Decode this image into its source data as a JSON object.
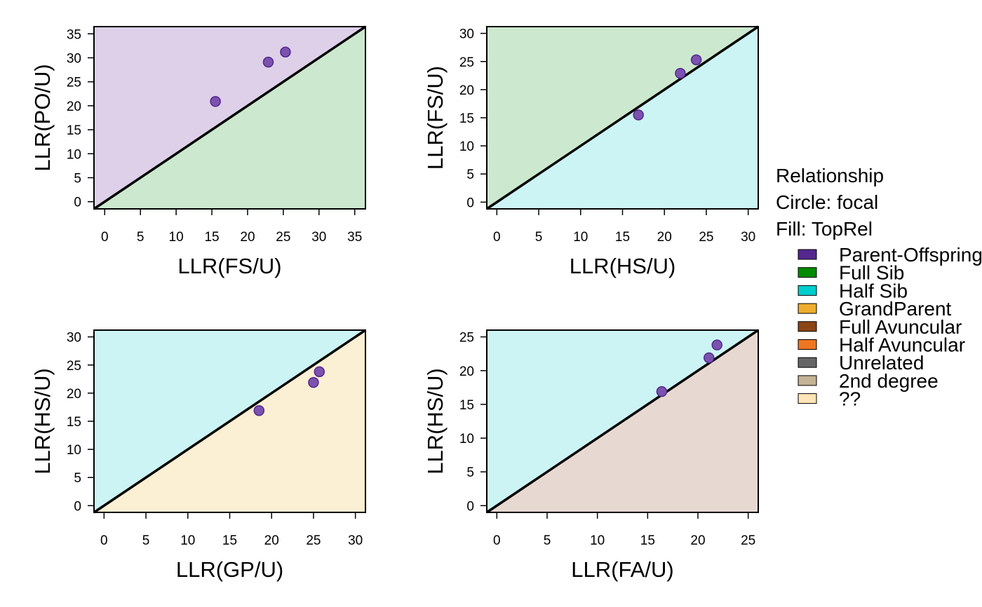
{
  "chart_data": [
    {
      "type": "scatter",
      "xlabel": "LLR(FS/U)",
      "ylabel": "LLR(PO/U)",
      "xlim": [
        -1.5,
        36.5
      ],
      "ylim": [
        -1.5,
        36.5
      ],
      "xticks": [
        0,
        5,
        10,
        15,
        20,
        25,
        30,
        35
      ],
      "yticks": [
        0,
        5,
        10,
        15,
        20,
        25,
        30,
        35
      ],
      "fill_above": "Parent-Offspring",
      "fill_below": "Full Sib",
      "points": [
        {
          "x": 15.5,
          "y": 20.9
        },
        {
          "x": 22.9,
          "y": 29.1
        },
        {
          "x": 25.3,
          "y": 31.2
        }
      ]
    },
    {
      "type": "scatter",
      "xlabel": "LLR(HS/U)",
      "ylabel": "LLR(FS/U)",
      "xlim": [
        -1.2,
        31.2
      ],
      "ylim": [
        -1.2,
        31.2
      ],
      "xticks": [
        0,
        5,
        10,
        15,
        20,
        25,
        30
      ],
      "yticks": [
        0,
        5,
        10,
        15,
        20,
        25,
        30
      ],
      "fill_above": "Full Sib",
      "fill_below": "Half Sib",
      "points": [
        {
          "x": 16.9,
          "y": 15.5
        },
        {
          "x": 21.9,
          "y": 22.9
        },
        {
          "x": 23.8,
          "y": 25.3
        }
      ]
    },
    {
      "type": "scatter",
      "xlabel": "LLR(GP/U)",
      "ylabel": "LLR(HS/U)",
      "xlim": [
        -1.2,
        31.2
      ],
      "ylim": [
        -1.2,
        31.2
      ],
      "xticks": [
        0,
        5,
        10,
        15,
        20,
        25,
        30
      ],
      "yticks": [
        0,
        5,
        10,
        15,
        20,
        25,
        30
      ],
      "fill_above": "Half Sib",
      "fill_below": "GrandParent",
      "points": [
        {
          "x": 18.5,
          "y": 16.9
        },
        {
          "x": 25.0,
          "y": 21.9
        },
        {
          "x": 25.7,
          "y": 23.8
        }
      ]
    },
    {
      "type": "scatter",
      "xlabel": "LLR(FA/U)",
      "ylabel": "LLR(HS/U)",
      "xlim": [
        -1.0,
        26.0
      ],
      "ylim": [
        -1.0,
        26.0
      ],
      "xticks": [
        0,
        5,
        10,
        15,
        20,
        25
      ],
      "yticks": [
        0,
        5,
        10,
        15,
        20,
        25
      ],
      "fill_above": "Half Sib",
      "fill_below": "2nd degree",
      "points": [
        {
          "x": 16.4,
          "y": 16.9
        },
        {
          "x": 21.1,
          "y": 21.9
        },
        {
          "x": 21.9,
          "y": 23.8
        }
      ]
    }
  ],
  "legend": {
    "title_lines": [
      "Relationship",
      "Circle: focal",
      "Fill: TopRel"
    ],
    "items": [
      {
        "label": "Parent-Offspring",
        "color": "#54278F"
      },
      {
        "label": "Full Sib",
        "color": "#008B00"
      },
      {
        "label": "Half Sib",
        "color": "#00CDCD"
      },
      {
        "label": "GrandParent",
        "color": "#EEAD2D"
      },
      {
        "label": "Full Avuncular",
        "color": "#8B4513"
      },
      {
        "label": "Half Avuncular",
        "color": "#EE7621"
      },
      {
        "label": "Unrelated",
        "color": "#666666"
      },
      {
        "label": "2nd degree",
        "color": "#C4B394"
      },
      {
        "label": "??",
        "color": "#FFE4B5"
      }
    ]
  },
  "style": {
    "point_fill": "#7B52AE",
    "point_stroke": "#54278F",
    "region_colors": {
      "Parent-Offspring": "#DDD0E8",
      "Full Sib": "#CCE8CE",
      "Half Sib": "#CCF4F4",
      "GrandParent": "#FBEFD4",
      "2nd degree": "#E7D9D2"
    }
  }
}
